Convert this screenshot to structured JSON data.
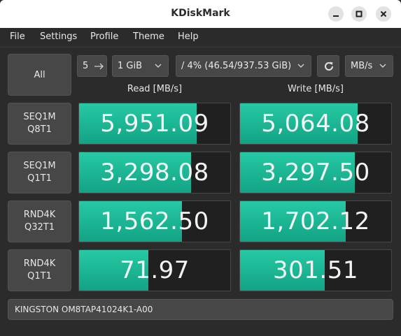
{
  "window": {
    "title": "KDiskMark"
  },
  "menu": [
    "File",
    "Settings",
    "Profile",
    "Theme",
    "Help"
  ],
  "controls": {
    "all_label": "All",
    "loops": "5",
    "size": "1 GiB",
    "drive": "/ 4% (46.54/937.53 GiB)",
    "units": "MB/s"
  },
  "headers": {
    "read": "Read [MB/s]",
    "write": "Write [MB/s]"
  },
  "tests": [
    {
      "line1": "SEQ1M",
      "line2": "Q8T1",
      "read": "5,951.09",
      "read_fill": 0.78,
      "write": "5,064.08",
      "write_fill": 0.78
    },
    {
      "line1": "SEQ1M",
      "line2": "Q1T1",
      "read": "3,298.08",
      "read_fill": 0.74,
      "write": "3,297.50",
      "write_fill": 0.76
    },
    {
      "line1": "RND4K",
      "line2": "Q32T1",
      "read": "1,562.50",
      "read_fill": 0.68,
      "write": "1,702.12",
      "write_fill": 0.7
    },
    {
      "line1": "RND4K",
      "line2": "Q1T1",
      "read": "71.97",
      "read_fill": 0.46,
      "write": "301.51",
      "write_fill": 0.56
    }
  ],
  "device": "KINGSTON OM8TAP41024K1-A00",
  "colors": {
    "accent": "#1bb391",
    "panel": "#2b2b2b",
    "widget": "#474747"
  },
  "icons": {
    "minimize": "minimize-icon",
    "maximize": "maximize-icon",
    "close": "close-icon",
    "refresh": "refresh-icon",
    "chevron": "chevron-down-icon",
    "spin": "spin-arrows-icon"
  }
}
